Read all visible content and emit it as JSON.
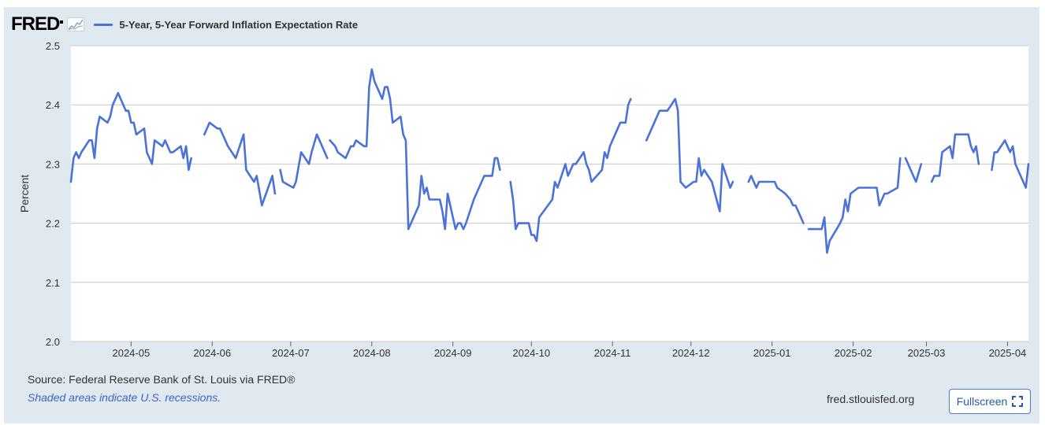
{
  "header": {
    "logo_text": "FRED",
    "logo_icon": "trend-graph-icon"
  },
  "colors": {
    "frame": "#e1e9f0",
    "series": "#4a72d9",
    "grid": "#c8c8c8",
    "note": "#3b63c4"
  },
  "footer": {
    "source": "Source: Federal Reserve Bank of St. Louis via FRED®",
    "note": "Shaded areas indicate U.S. recessions.",
    "site": "fred.stlouisfed.org",
    "fullscreen_label": "Fullscreen",
    "fullscreen_icon": "expand-corners-icon"
  },
  "chart_data": {
    "type": "line",
    "ylabel": "Percent",
    "ylim": [
      2.0,
      2.5
    ],
    "yticks": [
      "2.0",
      "2.1",
      "2.2",
      "2.3",
      "2.4",
      "2.5"
    ],
    "xlim": [
      "2024-04-08",
      "2025-04-09"
    ],
    "xticks": [
      {
        "date": "2024-05-01",
        "label": "2024-05"
      },
      {
        "date": "2024-06-01",
        "label": "2024-06"
      },
      {
        "date": "2024-07-01",
        "label": "2024-07"
      },
      {
        "date": "2024-08-01",
        "label": "2024-08"
      },
      {
        "date": "2024-09-01",
        "label": "2024-09"
      },
      {
        "date": "2024-10-01",
        "label": "2024-10"
      },
      {
        "date": "2024-11-01",
        "label": "2024-11"
      },
      {
        "date": "2024-12-01",
        "label": "2024-12"
      },
      {
        "date": "2025-01-01",
        "label": "2025-01"
      },
      {
        "date": "2025-02-01",
        "label": "2025-02"
      },
      {
        "date": "2025-03-01",
        "label": "2025-03"
      },
      {
        "date": "2025-04-01",
        "label": "2025-04"
      }
    ],
    "grid": "horizontal",
    "series": [
      {
        "name": "5-Year, 5-Year Forward Inflation Expectation Rate",
        "segments": [
          [
            [
              "2024-04-08",
              2.27
            ],
            [
              "2024-04-09",
              2.31
            ],
            [
              "2024-04-10",
              2.32
            ],
            [
              "2024-04-11",
              2.31
            ],
            [
              "2024-04-12",
              2.32
            ],
            [
              "2024-04-15",
              2.34
            ],
            [
              "2024-04-16",
              2.34
            ],
            [
              "2024-04-17",
              2.31
            ],
            [
              "2024-04-18",
              2.36
            ],
            [
              "2024-04-19",
              2.38
            ],
            [
              "2024-04-22",
              2.37
            ],
            [
              "2024-04-23",
              2.38
            ],
            [
              "2024-04-24",
              2.4
            ],
            [
              "2024-04-26",
              2.42
            ],
            [
              "2024-04-29",
              2.39
            ],
            [
              "2024-04-30",
              2.39
            ],
            [
              "2024-05-01",
              2.37
            ],
            [
              "2024-05-02",
              2.37
            ],
            [
              "2024-05-03",
              2.35
            ],
            [
              "2024-05-06",
              2.36
            ],
            [
              "2024-05-07",
              2.32
            ],
            [
              "2024-05-09",
              2.3
            ],
            [
              "2024-05-10",
              2.34
            ],
            [
              "2024-05-13",
              2.33
            ],
            [
              "2024-05-14",
              2.34
            ],
            [
              "2024-05-15",
              2.33
            ],
            [
              "2024-05-16",
              2.32
            ],
            [
              "2024-05-17",
              2.32
            ],
            [
              "2024-05-20",
              2.33
            ],
            [
              "2024-05-21",
              2.31
            ],
            [
              "2024-05-22",
              2.33
            ],
            [
              "2024-05-23",
              2.29
            ],
            [
              "2024-05-24",
              2.31
            ]
          ],
          [
            [
              "2024-05-29",
              2.35
            ],
            [
              "2024-05-31",
              2.37
            ],
            [
              "2024-06-03",
              2.36
            ],
            [
              "2024-06-04",
              2.36
            ],
            [
              "2024-06-05",
              2.35
            ],
            [
              "2024-06-06",
              2.34
            ],
            [
              "2024-06-07",
              2.33
            ],
            [
              "2024-06-10",
              2.31
            ],
            [
              "2024-06-13",
              2.35
            ],
            [
              "2024-06-14",
              2.29
            ],
            [
              "2024-06-17",
              2.27
            ],
            [
              "2024-06-18",
              2.28
            ],
            [
              "2024-06-20",
              2.23
            ],
            [
              "2024-06-24",
              2.28
            ],
            [
              "2024-06-25",
              2.25
            ]
          ],
          [
            [
              "2024-06-27",
              2.29
            ],
            [
              "2024-06-28",
              2.27
            ],
            [
              "2024-07-02",
              2.26
            ],
            [
              "2024-07-03",
              2.27
            ],
            [
              "2024-07-05",
              2.32
            ],
            [
              "2024-07-08",
              2.3
            ],
            [
              "2024-07-09",
              2.32
            ],
            [
              "2024-07-11",
              2.35
            ],
            [
              "2024-07-12",
              2.34
            ],
            [
              "2024-07-15",
              2.31
            ]
          ],
          [
            [
              "2024-07-16",
              2.34
            ],
            [
              "2024-07-18",
              2.33
            ],
            [
              "2024-07-19",
              2.32
            ],
            [
              "2024-07-22",
              2.31
            ],
            [
              "2024-07-23",
              2.32
            ],
            [
              "2024-07-24",
              2.33
            ],
            [
              "2024-07-25",
              2.33
            ],
            [
              "2024-07-26",
              2.34
            ],
            [
              "2024-07-29",
              2.33
            ],
            [
              "2024-07-30",
              2.33
            ],
            [
              "2024-07-31",
              2.43
            ],
            [
              "2024-08-01",
              2.46
            ],
            [
              "2024-08-02",
              2.44
            ],
            [
              "2024-08-05",
              2.41
            ],
            [
              "2024-08-06",
              2.43
            ],
            [
              "2024-08-07",
              2.43
            ],
            [
              "2024-08-08",
              2.41
            ],
            [
              "2024-08-09",
              2.37
            ],
            [
              "2024-08-12",
              2.38
            ],
            [
              "2024-08-13",
              2.35
            ],
            [
              "2024-08-14",
              2.34
            ],
            [
              "2024-08-15",
              2.19
            ],
            [
              "2024-08-19",
              2.23
            ],
            [
              "2024-08-20",
              2.28
            ],
            [
              "2024-08-21",
              2.25
            ],
            [
              "2024-08-22",
              2.26
            ],
            [
              "2024-08-23",
              2.24
            ],
            [
              "2024-08-26",
              2.24
            ],
            [
              "2024-08-27",
              2.24
            ],
            [
              "2024-08-28",
              2.22
            ],
            [
              "2024-08-29",
              2.19
            ],
            [
              "2024-08-30",
              2.25
            ],
            [
              "2024-09-02",
              2.19
            ],
            [
              "2024-09-03",
              2.2
            ],
            [
              "2024-09-04",
              2.2
            ],
            [
              "2024-09-05",
              2.19
            ],
            [
              "2024-09-06",
              2.2
            ],
            [
              "2024-09-09",
              2.24
            ],
            [
              "2024-09-13",
              2.28
            ],
            [
              "2024-09-16",
              2.28
            ],
            [
              "2024-09-17",
              2.31
            ],
            [
              "2024-09-18",
              2.31
            ],
            [
              "2024-09-19",
              2.29
            ]
          ],
          [
            [
              "2024-09-23",
              2.27
            ],
            [
              "2024-09-24",
              2.24
            ],
            [
              "2024-09-25",
              2.19
            ],
            [
              "2024-09-26",
              2.2
            ],
            [
              "2024-09-27",
              2.2
            ],
            [
              "2024-09-30",
              2.2
            ],
            [
              "2024-10-01",
              2.18
            ],
            [
              "2024-10-02",
              2.18
            ],
            [
              "2024-10-03",
              2.17
            ],
            [
              "2024-10-04",
              2.21
            ],
            [
              "2024-10-09",
              2.24
            ],
            [
              "2024-10-10",
              2.27
            ],
            [
              "2024-10-11",
              2.26
            ],
            [
              "2024-10-14",
              2.3
            ],
            [
              "2024-10-15",
              2.28
            ],
            [
              "2024-10-16",
              2.29
            ],
            [
              "2024-10-17",
              2.3
            ],
            [
              "2024-10-18",
              2.3
            ],
            [
              "2024-10-21",
              2.32
            ],
            [
              "2024-10-22",
              2.3
            ],
            [
              "2024-10-23",
              2.29
            ],
            [
              "2024-10-24",
              2.27
            ],
            [
              "2024-10-28",
              2.29
            ],
            [
              "2024-10-29",
              2.32
            ],
            [
              "2024-10-30",
              2.31
            ],
            [
              "2024-10-31",
              2.33
            ],
            [
              "2024-11-04",
              2.37
            ],
            [
              "2024-11-06",
              2.37
            ],
            [
              "2024-11-07",
              2.4
            ],
            [
              "2024-11-08",
              2.41
            ]
          ],
          [
            [
              "2024-11-14",
              2.34
            ],
            [
              "2024-11-15",
              2.35
            ],
            [
              "2024-11-18",
              2.38
            ],
            [
              "2024-11-19",
              2.39
            ],
            [
              "2024-11-20",
              2.39
            ],
            [
              "2024-11-21",
              2.39
            ],
            [
              "2024-11-22",
              2.39
            ],
            [
              "2024-11-25",
              2.41
            ],
            [
              "2024-11-26",
              2.39
            ],
            [
              "2024-11-27",
              2.27
            ],
            [
              "2024-11-29",
              2.26
            ],
            [
              "2024-12-02",
              2.27
            ],
            [
              "2024-12-03",
              2.27
            ],
            [
              "2024-12-04",
              2.31
            ],
            [
              "2024-12-05",
              2.28
            ],
            [
              "2024-12-06",
              2.29
            ],
            [
              "2024-12-09",
              2.27
            ],
            [
              "2024-12-12",
              2.22
            ],
            [
              "2024-12-13",
              2.3
            ],
            [
              "2024-12-16",
              2.26
            ],
            [
              "2024-12-17",
              2.27
            ]
          ],
          [
            [
              "2024-12-23",
              2.27
            ],
            [
              "2024-12-24",
              2.28
            ],
            [
              "2024-12-26",
              2.26
            ],
            [
              "2024-12-27",
              2.27
            ],
            [
              "2025-01-02",
              2.27
            ],
            [
              "2025-01-03",
              2.26
            ],
            [
              "2025-01-06",
              2.25
            ],
            [
              "2025-01-08",
              2.24
            ],
            [
              "2025-01-09",
              2.23
            ],
            [
              "2025-01-10",
              2.23
            ],
            [
              "2025-01-13",
              2.2
            ]
          ],
          [
            [
              "2025-01-15",
              2.19
            ],
            [
              "2025-01-16",
              2.19
            ],
            [
              "2025-01-17",
              2.19
            ],
            [
              "2025-01-20",
              2.19
            ],
            [
              "2025-01-21",
              2.21
            ],
            [
              "2025-01-22",
              2.15
            ],
            [
              "2025-01-23",
              2.17
            ],
            [
              "2025-01-27",
              2.2
            ],
            [
              "2025-01-28",
              2.21
            ],
            [
              "2025-01-29",
              2.24
            ],
            [
              "2025-01-30",
              2.22
            ],
            [
              "2025-01-31",
              2.25
            ],
            [
              "2025-02-03",
              2.26
            ],
            [
              "2025-02-04",
              2.26
            ],
            [
              "2025-02-05",
              2.26
            ],
            [
              "2025-02-06",
              2.26
            ],
            [
              "2025-02-07",
              2.26
            ],
            [
              "2025-02-10",
              2.26
            ],
            [
              "2025-02-11",
              2.23
            ],
            [
              "2025-02-12",
              2.24
            ],
            [
              "2025-02-13",
              2.25
            ],
            [
              "2025-02-14",
              2.25
            ],
            [
              "2025-02-18",
              2.26
            ],
            [
              "2025-02-19",
              2.31
            ]
          ],
          [
            [
              "2025-02-21",
              2.31
            ],
            [
              "2025-02-24",
              2.28
            ],
            [
              "2025-02-25",
              2.27
            ],
            [
              "2025-02-27",
              2.3
            ]
          ],
          [
            [
              "2025-03-03",
              2.27
            ],
            [
              "2025-03-04",
              2.28
            ],
            [
              "2025-03-05",
              2.28
            ],
            [
              "2025-03-06",
              2.28
            ],
            [
              "2025-03-07",
              2.32
            ],
            [
              "2025-03-10",
              2.33
            ],
            [
              "2025-03-11",
              2.31
            ],
            [
              "2025-03-12",
              2.35
            ],
            [
              "2025-03-14",
              2.35
            ],
            [
              "2025-03-17",
              2.35
            ],
            [
              "2025-03-18",
              2.33
            ],
            [
              "2025-03-19",
              2.32
            ],
            [
              "2025-03-20",
              2.33
            ],
            [
              "2025-03-21",
              2.3
            ]
          ],
          [
            [
              "2025-03-26",
              2.29
            ],
            [
              "2025-03-27",
              2.32
            ],
            [
              "2025-03-28",
              2.32
            ],
            [
              "2025-03-31",
              2.34
            ],
            [
              "2025-04-01",
              2.33
            ],
            [
              "2025-04-02",
              2.32
            ],
            [
              "2025-04-03",
              2.33
            ],
            [
              "2025-04-04",
              2.3
            ],
            [
              "2025-04-07",
              2.27
            ],
            [
              "2025-04-08",
              2.26
            ],
            [
              "2025-04-09",
              2.3
            ]
          ]
        ]
      }
    ]
  }
}
